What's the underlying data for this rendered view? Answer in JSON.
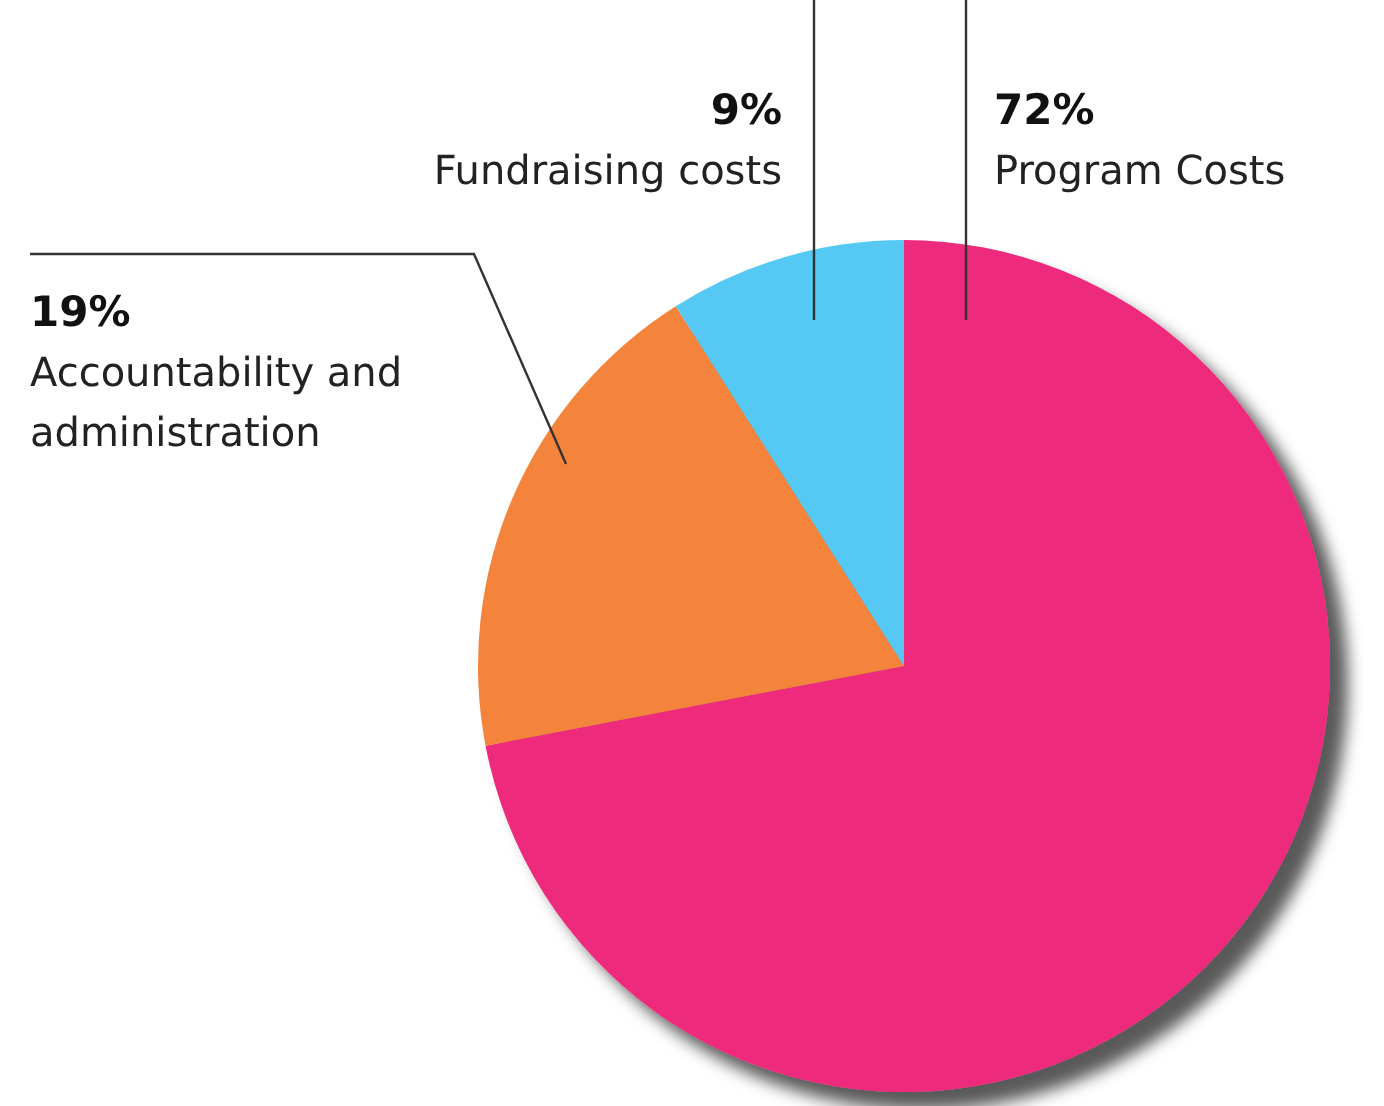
{
  "chart_data": {
    "type": "pie",
    "categories": [
      "Program Costs",
      "Accountability and administration",
      "Fundraising costs"
    ],
    "values": [
      72,
      19,
      9
    ],
    "value_labels": [
      "72%",
      "19%",
      "9%"
    ],
    "colors": [
      "#ee2a7b",
      "#f4843a",
      "#54c8f3"
    ]
  }
}
